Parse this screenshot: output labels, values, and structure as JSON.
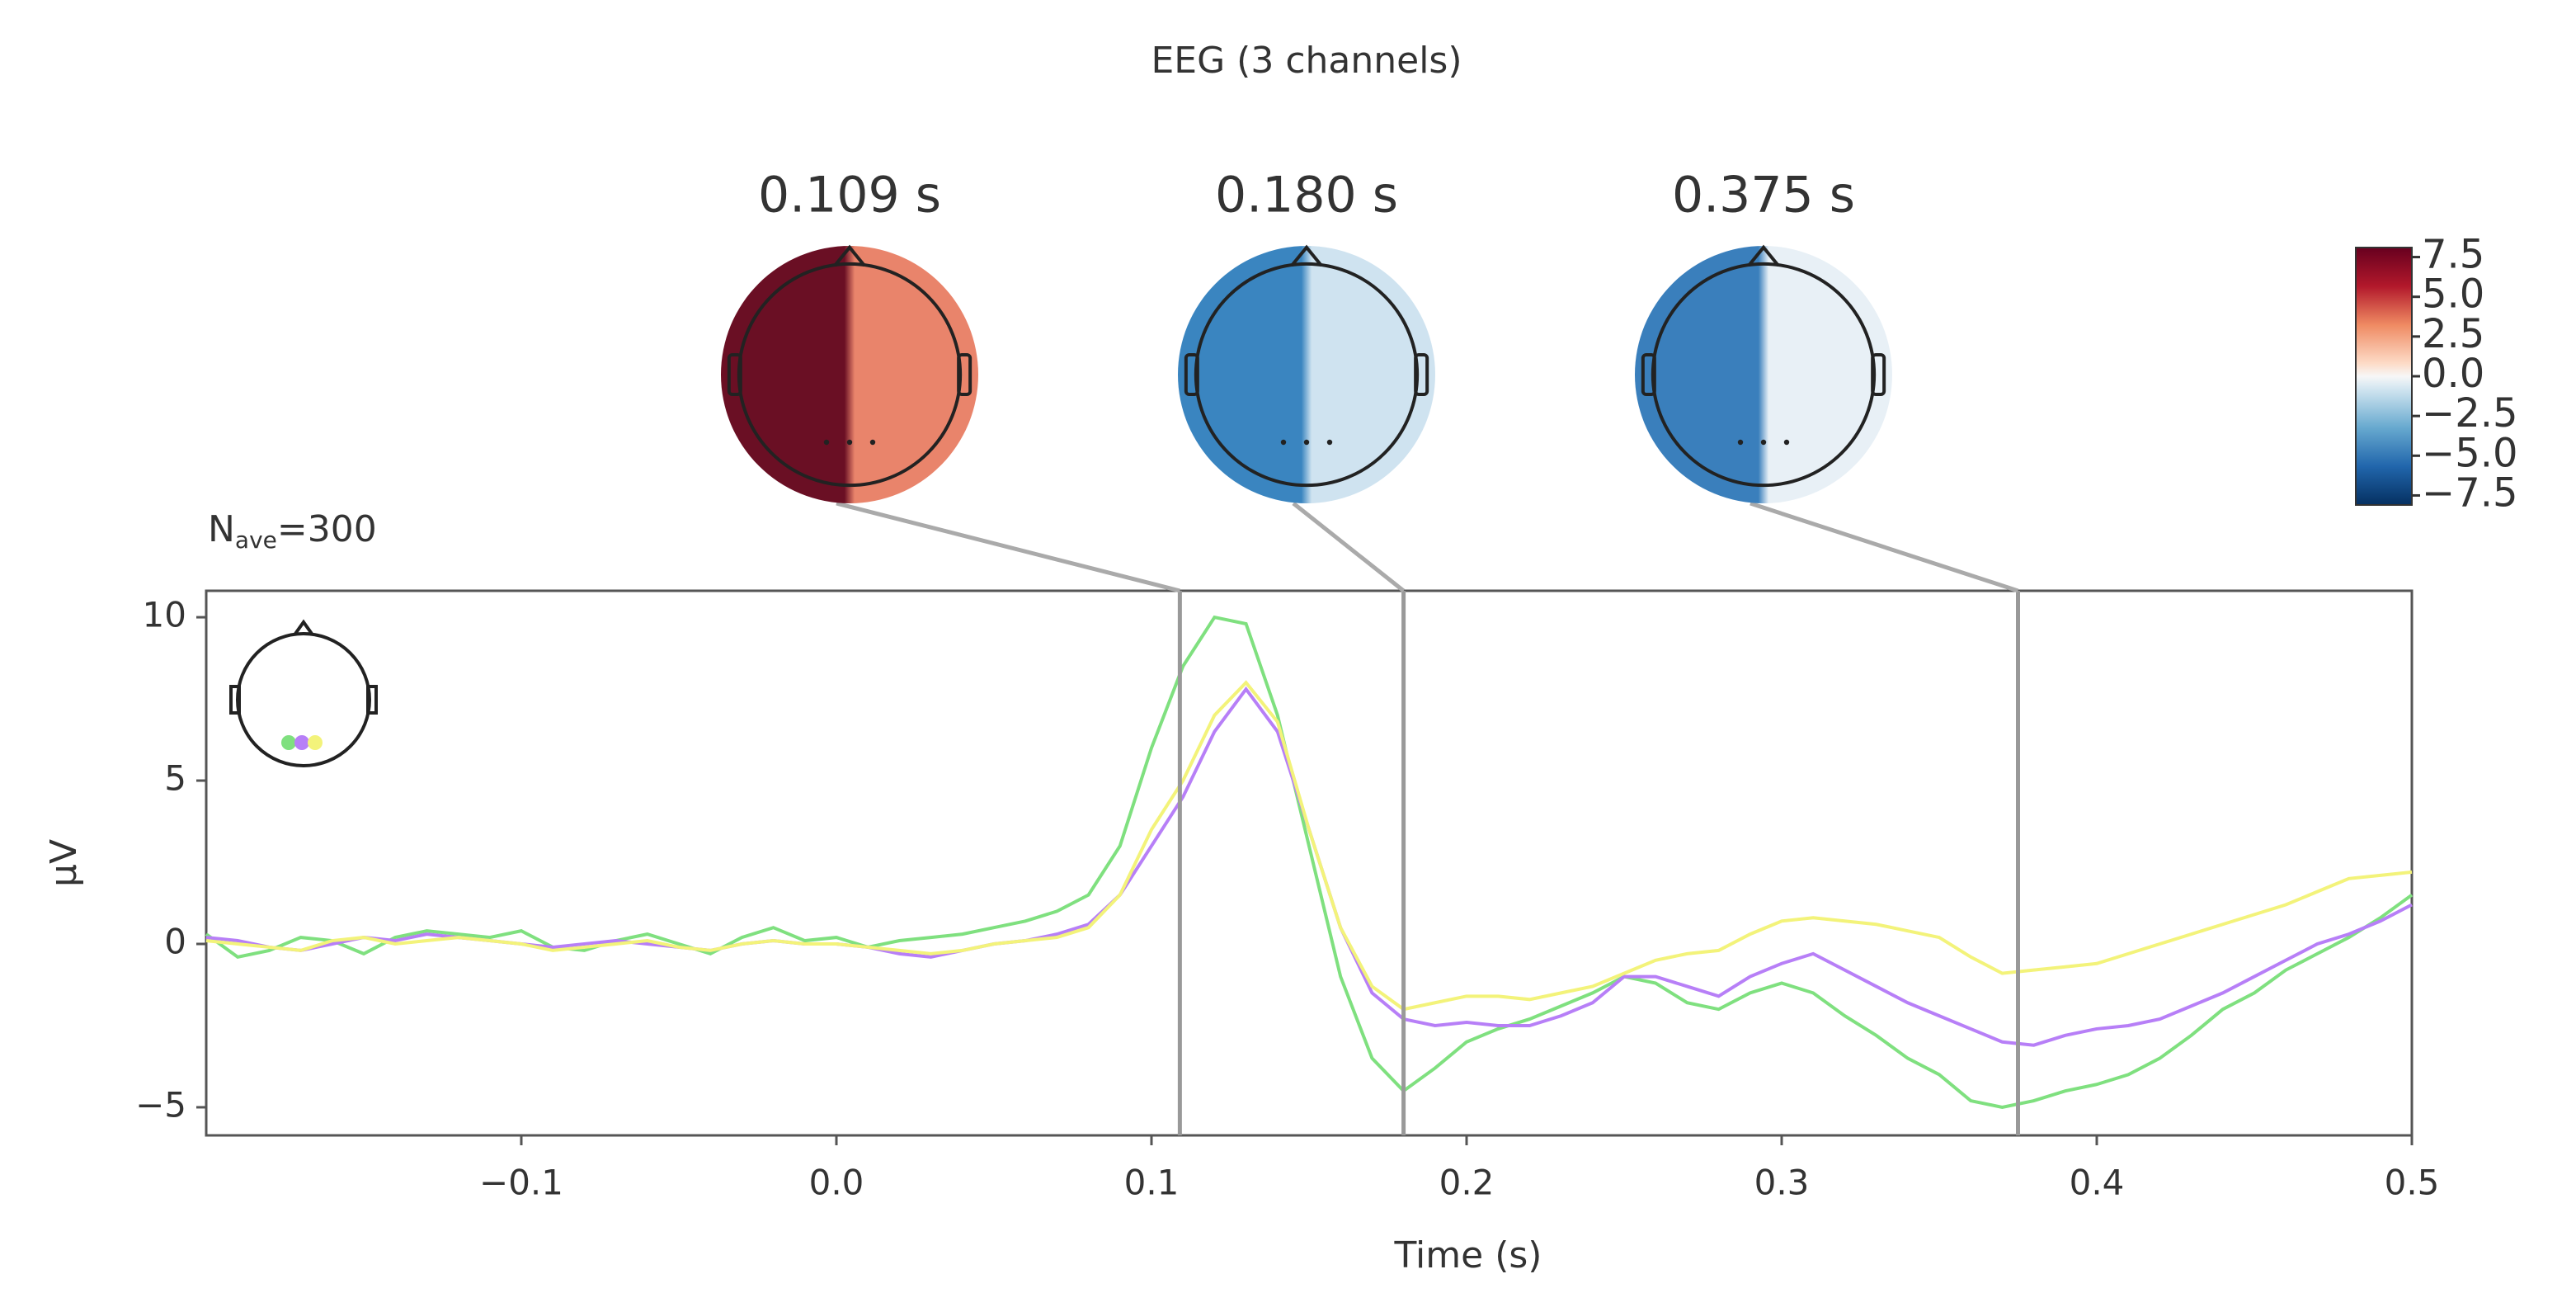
{
  "chart_data": {
    "type": "line",
    "title": "EEG (3 channels)",
    "nave": {
      "prefix": "N",
      "sub": "ave",
      "suffix": "=300"
    },
    "xlabel": "Time (s)",
    "ylabel": "µV",
    "xlim": [
      -0.2,
      0.5
    ],
    "ylim": [
      -5.86,
      10.81
    ],
    "xticks": [
      {
        "value": -0.1,
        "label": "−0.1"
      },
      {
        "value": 0,
        "label": "0.0"
      },
      0.1,
      0.2,
      0.3,
      0.4,
      0.5
    ],
    "yticks": [
      {
        "value": -5,
        "label": "−5"
      },
      0,
      5,
      10
    ],
    "x": [
      -0.2,
      -0.19,
      -0.18,
      -0.17,
      -0.16,
      -0.15,
      -0.14,
      -0.13,
      -0.12,
      -0.11,
      -0.1,
      -0.09,
      -0.08,
      -0.07,
      -0.06,
      -0.05,
      -0.04,
      -0.03,
      -0.02,
      -0.01,
      0,
      0.01,
      0.02,
      0.03,
      0.04,
      0.05,
      0.06,
      0.07,
      0.08,
      0.09,
      0.1,
      0.11,
      0.12,
      0.13,
      0.14,
      0.15,
      0.16,
      0.17,
      0.18,
      0.19,
      0.2,
      0.21,
      0.22,
      0.23,
      0.24,
      0.25,
      0.26,
      0.27,
      0.28,
      0.29,
      0.3,
      0.31,
      0.32,
      0.33,
      0.34,
      0.35,
      0.36,
      0.37,
      0.38,
      0.39,
      0.4,
      0.41,
      0.42,
      0.43,
      0.44,
      0.45,
      0.46,
      0.47,
      0.48,
      0.49,
      0.5
    ],
    "series": [
      {
        "color": "#7fe07f",
        "values": [
          0.3,
          -0.4,
          -0.2,
          0.2,
          0.1,
          -0.3,
          0.2,
          0.4,
          0.3,
          0.2,
          0.4,
          -0.1,
          -0.2,
          0.1,
          0.3,
          0,
          -0.3,
          0.2,
          0.5,
          0.1,
          0.2,
          -0.1,
          0.1,
          0.2,
          0.3,
          0.5,
          0.7,
          1.0,
          1.5,
          3.0,
          6.0,
          8.5,
          10.0,
          9.8,
          7.0,
          3.0,
          -1.0,
          -3.5,
          -4.5,
          -3.8,
          -3.0,
          -2.6,
          -2.3,
          -1.9,
          -1.5,
          -1.0,
          -1.2,
          -1.8,
          -2.0,
          -1.5,
          -1.2,
          -1.5,
          -2.2,
          -2.8,
          -3.5,
          -4.0,
          -4.8,
          -5.0,
          -4.8,
          -4.5,
          -4.3,
          -4.0,
          -3.5,
          -2.8,
          -2.0,
          -1.5,
          -0.8,
          -0.3,
          0.2,
          0.8,
          1.5
        ]
      },
      {
        "color": "#b77ff7",
        "values": [
          0.2,
          0.1,
          -0.1,
          -0.2,
          0.0,
          0.2,
          0.1,
          0.3,
          0.2,
          0.1,
          0.0,
          -0.1,
          0.0,
          0.1,
          0.0,
          -0.1,
          -0.2,
          0.0,
          0.1,
          0.0,
          0.0,
          -0.1,
          -0.3,
          -0.4,
          -0.2,
          0.0,
          0.1,
          0.3,
          0.6,
          1.5,
          3.0,
          4.5,
          6.5,
          7.8,
          6.5,
          3.5,
          0.5,
          -1.5,
          -2.3,
          -2.5,
          -2.4,
          -2.5,
          -2.5,
          -2.2,
          -1.8,
          -1.0,
          -1.0,
          -1.3,
          -1.6,
          -1.0,
          -0.6,
          -0.3,
          -0.8,
          -1.3,
          -1.8,
          -2.2,
          -2.6,
          -3.0,
          -3.1,
          -2.8,
          -2.6,
          -2.5,
          -2.3,
          -1.9,
          -1.5,
          -1.0,
          -0.5,
          0.0,
          0.3,
          0.7,
          1.2
        ]
      },
      {
        "color": "#f3f37a",
        "values": [
          0.1,
          0.0,
          -0.1,
          -0.2,
          0.1,
          0.2,
          0.0,
          0.1,
          0.2,
          0.1,
          0.0,
          -0.2,
          -0.1,
          0.0,
          0.1,
          -0.1,
          -0.2,
          0.0,
          0.1,
          0.0,
          0.0,
          -0.1,
          -0.2,
          -0.3,
          -0.2,
          0.0,
          0.1,
          0.2,
          0.5,
          1.5,
          3.5,
          5.0,
          7.0,
          8.0,
          6.8,
          3.5,
          0.5,
          -1.3,
          -2.0,
          -1.8,
          -1.6,
          -1.6,
          -1.7,
          -1.5,
          -1.3,
          -0.9,
          -0.5,
          -0.3,
          -0.2,
          0.3,
          0.7,
          0.8,
          0.7,
          0.6,
          0.4,
          0.2,
          -0.4,
          -0.9,
          -0.8,
          -0.7,
          -0.6,
          -0.3,
          0.0,
          0.3,
          0.6,
          0.9,
          1.2,
          1.6,
          2.0,
          2.1,
          2.2
        ]
      }
    ],
    "topomaps": [
      {
        "time": 0.109,
        "label": "0.109 s",
        "left_color": "#6a0f24",
        "right_color": "#e9846b"
      },
      {
        "time": 0.18,
        "label": "0.180 s",
        "left_color": "#3a85c0",
        "right_color": "#cfe3f0"
      },
      {
        "time": 0.375,
        "label": "0.375 s",
        "left_color": "#3a7fbc",
        "right_color": "#e8f0f6"
      }
    ],
    "colorbar": {
      "clim": [
        -8.1,
        8.1
      ],
      "ticks": [
        {
          "value": 7.5,
          "label": "7.5"
        },
        {
          "value": 5,
          "label": "5.0"
        },
        {
          "value": 2.5,
          "label": "2.5"
        },
        {
          "value": 0,
          "label": "0.0"
        },
        {
          "value": -2.5,
          "label": "−2.5"
        },
        {
          "value": -5,
          "label": "−5.0"
        },
        {
          "value": -7.5,
          "label": "−7.5"
        }
      ]
    }
  }
}
